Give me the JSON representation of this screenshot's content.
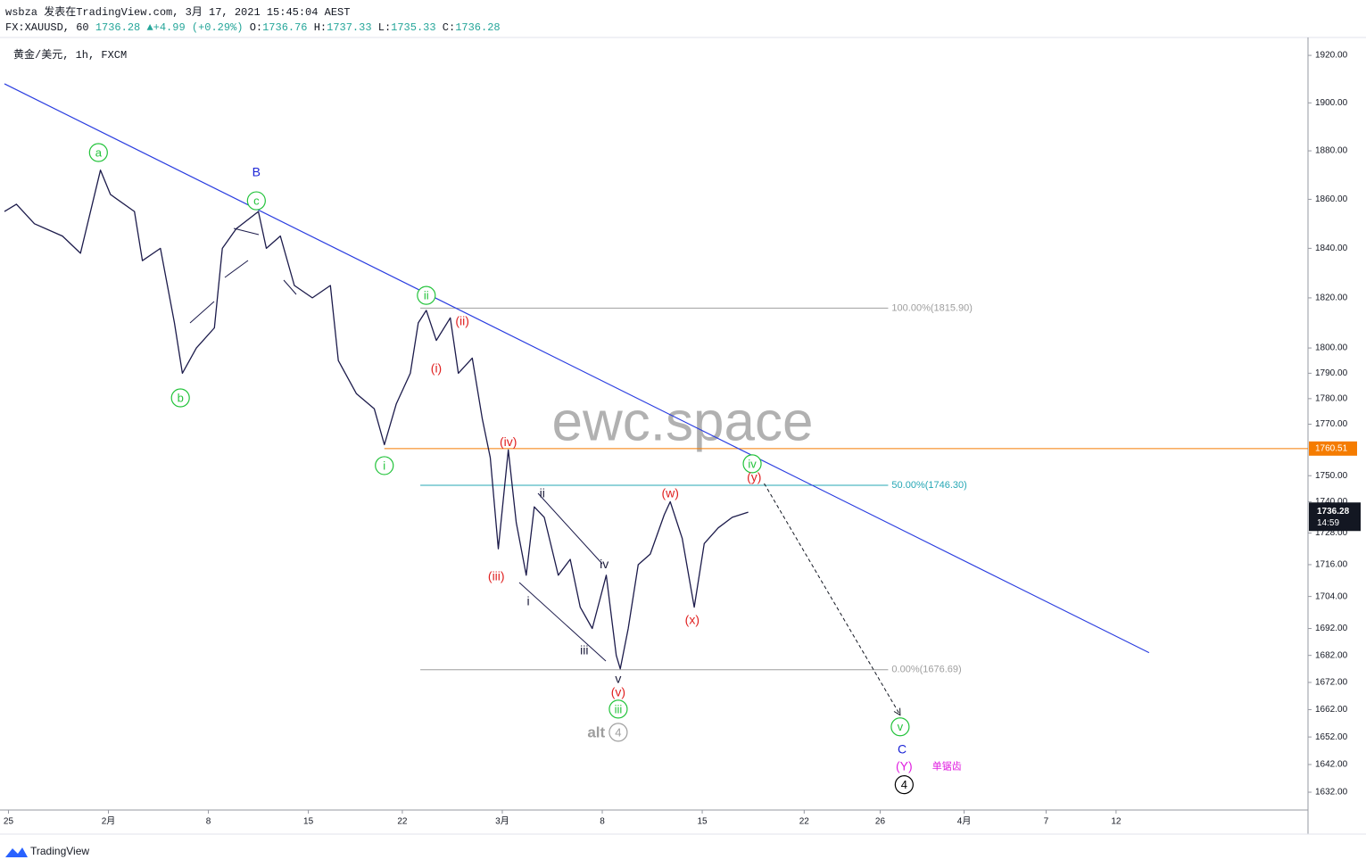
{
  "chart_data": {
    "type": "line",
    "header": "wsbza 发表在TradingView.com, 3月 17, 2021 15:45:04 AEST",
    "symbol": "FX:XAUUSD, 60",
    "last": "1736.28",
    "arrow": "▲",
    "change": "+4.99 (+0.29%)",
    "ohlc": [
      {
        "key": "O:",
        "value": "1736.76"
      },
      {
        "key": "H:",
        "value": "1737.33"
      },
      {
        "key": "L:",
        "value": "1735.33"
      },
      {
        "key": "C:",
        "value": "1736.28"
      }
    ],
    "title": "黄金/美元, 1h, FXCM",
    "watermark": "ewc.space",
    "brand": "TradingView",
    "log_scale": true,
    "xlim": [
      -0.2,
      65
    ],
    "ylim": [
      1625.6,
      1927.6
    ],
    "xticks": [
      {
        "value": 0,
        "label": "25"
      },
      {
        "value": 5,
        "label": "2月"
      },
      {
        "value": 10,
        "label": "8"
      },
      {
        "value": 15,
        "label": "15"
      },
      {
        "value": 19.7,
        "label": "22"
      },
      {
        "value": 24.7,
        "label": "3月"
      },
      {
        "value": 29.7,
        "label": "8"
      },
      {
        "value": 34.7,
        "label": "15"
      },
      {
        "value": 39.8,
        "label": "22"
      },
      {
        "value": 43.6,
        "label": "26"
      },
      {
        "value": 47.8,
        "label": "4月"
      },
      {
        "value": 51.9,
        "label": "7"
      },
      {
        "value": 55.4,
        "label": "12"
      }
    ],
    "yticks": [
      {
        "value": 1920,
        "label": "1920.00"
      },
      {
        "value": 1900,
        "label": "1900.00"
      },
      {
        "value": 1880,
        "label": "1880.00"
      },
      {
        "value": 1860,
        "label": "1860.00"
      },
      {
        "value": 1840,
        "label": "1840.00"
      },
      {
        "value": 1820,
        "label": "1820.00"
      },
      {
        "value": 1800,
        "label": "1800.00"
      },
      {
        "value": 1790,
        "label": "1790.00"
      },
      {
        "value": 1780,
        "label": "1780.00"
      },
      {
        "value": 1770,
        "label": "1770.00"
      },
      {
        "value": 1750,
        "label": "1750.00"
      },
      {
        "value": 1740,
        "label": "1740.00"
      },
      {
        "value": 1728,
        "label": "1728.00"
      },
      {
        "value": 1716,
        "label": "1716.00"
      },
      {
        "value": 1704,
        "label": "1704.00"
      },
      {
        "value": 1692,
        "label": "1692.00"
      },
      {
        "value": 1682,
        "label": "1682.00"
      },
      {
        "value": 1672,
        "label": "1672.00"
      },
      {
        "value": 1662,
        "label": "1662.00"
      },
      {
        "value": 1652,
        "label": "1652.00"
      },
      {
        "value": 1642,
        "label": "1642.00"
      },
      {
        "value": 1632,
        "label": "1632.00"
      }
    ],
    "series": [
      {
        "color": "#1c1b4b",
        "x": [
          -0.2,
          0.4,
          1.3,
          2.7,
          3.6,
          4.6,
          5.1,
          6.3,
          6.7,
          7.6,
          8.3,
          8.7,
          9.4,
          10.3,
          10.7,
          11.4,
          12.5,
          12.9,
          13.6,
          14.3,
          15.2,
          16.1,
          16.5,
          17.4,
          18.3,
          18.8,
          19.4,
          20.1,
          20.5,
          20.9,
          21.4,
          22.1,
          22.5,
          23.2,
          23.7,
          24.1,
          24.5,
          25.0,
          25.4,
          25.9,
          26.3,
          26.8,
          27.5,
          28.1,
          28.6,
          29.2,
          29.9,
          30.4,
          30.6,
          31.0,
          31.5,
          32.1,
          32.8,
          33.1,
          33.7,
          34.3,
          34.8,
          35.5,
          36.2,
          37.0
        ],
        "values": [
          1855,
          1858,
          1850,
          1845,
          1838,
          1872,
          1862,
          1855,
          1835,
          1840,
          1810,
          1790,
          1800,
          1808,
          1840,
          1848,
          1855,
          1840,
          1845,
          1825,
          1820,
          1825,
          1795,
          1782,
          1776,
          1762,
          1778,
          1790,
          1810,
          1815,
          1803,
          1812,
          1790,
          1796,
          1772,
          1757,
          1722,
          1760,
          1732,
          1712,
          1738,
          1734,
          1712,
          1718,
          1700,
          1692,
          1712,
          1682,
          1677,
          1692,
          1716,
          1720,
          1735,
          1740,
          1726,
          1700,
          1724,
          1730,
          1734,
          1736
        ]
      }
    ],
    "trendline": {
      "color": "#2b3ee0",
      "x": [
        -0.2,
        57.05
      ],
      "y": [
        1908,
        1683
      ]
    },
    "fib": {
      "x": [
        20.6,
        44
      ],
      "levels": [
        {
          "value": 1815.9,
          "label": "100.00%(1815.90)",
          "color": "#9e9e9e"
        },
        {
          "value": 1746.3,
          "label": "50.00%(1746.30)",
          "color": "#26a7b5"
        },
        {
          "value": 1676.69,
          "label": "0.00%(1676.69)",
          "color": "#9e9e9e"
        }
      ]
    },
    "price_line": {
      "value": 1760.51,
      "label": "1760.51",
      "x_start": 18.8,
      "color": "#f57c00"
    },
    "last_price": {
      "value": 1736.28,
      "label": "1736.28",
      "countdown": "14:59",
      "color": "#131722"
    },
    "projection": {
      "x": [
        37.8,
        44.6
      ],
      "y": [
        1747,
        1660
      ]
    },
    "annotations": [
      {
        "text": "a",
        "x": 4.5,
        "y": 1879.3,
        "color": "#22c33a",
        "circle": true
      },
      {
        "text": "B",
        "x": 12.4,
        "y": 1871.2,
        "color": "#1a23d6"
      },
      {
        "text": "c",
        "x": 12.4,
        "y": 1859.4,
        "color": "#22c33a",
        "circle": true
      },
      {
        "text": "b",
        "x": 8.6,
        "y": 1780.3,
        "color": "#22c33a",
        "circle": true
      },
      {
        "text": "ii",
        "x": 20.9,
        "y": 1821.0,
        "color": "#22c33a",
        "circle": true
      },
      {
        "text": "(ii)",
        "x": 22.7,
        "y": 1810.7,
        "color": "#e02020"
      },
      {
        "text": "(i)",
        "x": 21.4,
        "y": 1791.9,
        "color": "#e02020"
      },
      {
        "text": "i",
        "x": 18.8,
        "y": 1753.9,
        "color": "#22c33a",
        "circle": true
      },
      {
        "text": "(iv)",
        "x": 25.0,
        "y": 1763.2,
        "color": "#e02020"
      },
      {
        "text": "(iii)",
        "x": 24.4,
        "y": 1711.6,
        "color": "#e02020"
      },
      {
        "text": "ii",
        "x": 26.7,
        "y": 1743.2,
        "color": "#1a1a3a"
      },
      {
        "text": "i",
        "x": 26.0,
        "y": 1702.2,
        "color": "#1a1a3a"
      },
      {
        "text": "iv",
        "x": 29.8,
        "y": 1716.3,
        "color": "#1a1a3a"
      },
      {
        "text": "iii",
        "x": 28.8,
        "y": 1683.9,
        "color": "#1a1a3a"
      },
      {
        "text": "v",
        "x": 30.5,
        "y": 1673.3,
        "color": "#1a1a3a"
      },
      {
        "text": "(v)",
        "x": 30.5,
        "y": 1668.4,
        "color": "#e02020"
      },
      {
        "text": "iii",
        "x": 30.5,
        "y": 1662.2,
        "color": "#22c33a",
        "circle": true
      },
      {
        "text": "alt",
        "x": 29.4,
        "y": 1653.7,
        "color": "#9e9e9e",
        "bold": true
      },
      {
        "text": "4",
        "x": 30.5,
        "y": 1653.7,
        "color": "#9e9e9e",
        "circle": true
      },
      {
        "text": "(w)",
        "x": 33.1,
        "y": 1743.2,
        "color": "#e02020"
      },
      {
        "text": "(x)",
        "x": 34.2,
        "y": 1695.2,
        "color": "#e02020"
      },
      {
        "text": "iv",
        "x": 37.2,
        "y": 1754.6,
        "color": "#22c33a",
        "circle": true
      },
      {
        "text": "(y)",
        "x": 37.3,
        "y": 1749.4,
        "color": "#e02020"
      },
      {
        "text": "v",
        "x": 44.6,
        "y": 1655.7,
        "color": "#22c33a",
        "circle": true
      },
      {
        "text": "C",
        "x": 44.7,
        "y": 1647.6,
        "color": "#1a23d6"
      },
      {
        "text": "(Y)",
        "x": 44.8,
        "y": 1641.4,
        "color": "#e020e0"
      },
      {
        "text": "单锯齿",
        "x": 46.2,
        "y": 1641.4,
        "color": "#e020e0",
        "small": true
      },
      {
        "text": "4",
        "x": 44.8,
        "y": 1634.7,
        "color": "#000000",
        "circle": true
      }
    ]
  }
}
